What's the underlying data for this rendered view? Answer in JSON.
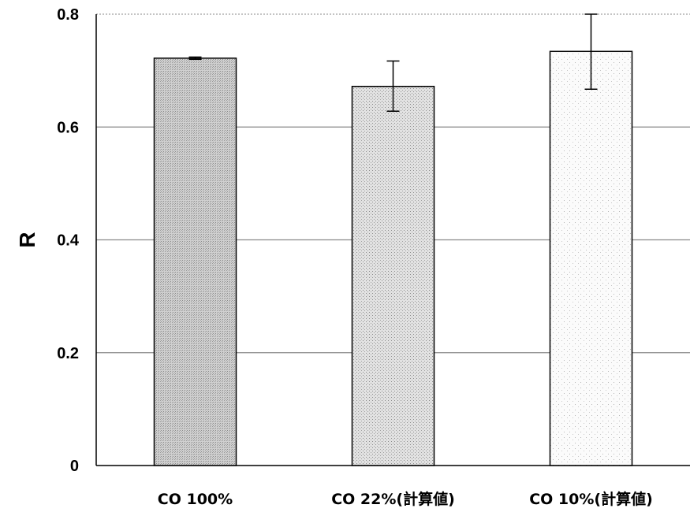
{
  "chart_data": {
    "type": "bar",
    "title": "",
    "xlabel": "",
    "ylabel": "R",
    "ylim": [
      0,
      0.8
    ],
    "yticks": [
      "0",
      "0.2",
      "0.4",
      "0.6",
      "0.8"
    ],
    "grid": true,
    "categories": [
      "CO 100%",
      "CO 22%(計算値)",
      "CO 10%(計算値)"
    ],
    "series": [
      {
        "values": [
          0.722,
          0.672,
          0.734
        ],
        "error_low": [
          0.72,
          0.628,
          0.667
        ],
        "error_high": [
          0.724,
          0.717,
          0.8
        ]
      }
    ],
    "colors": {
      "bar_fills": [
        "#c4c4c4",
        "#d9d9d9",
        "#f4f4f4"
      ],
      "bar_stroke": "#000000",
      "grid": "#888888"
    }
  }
}
